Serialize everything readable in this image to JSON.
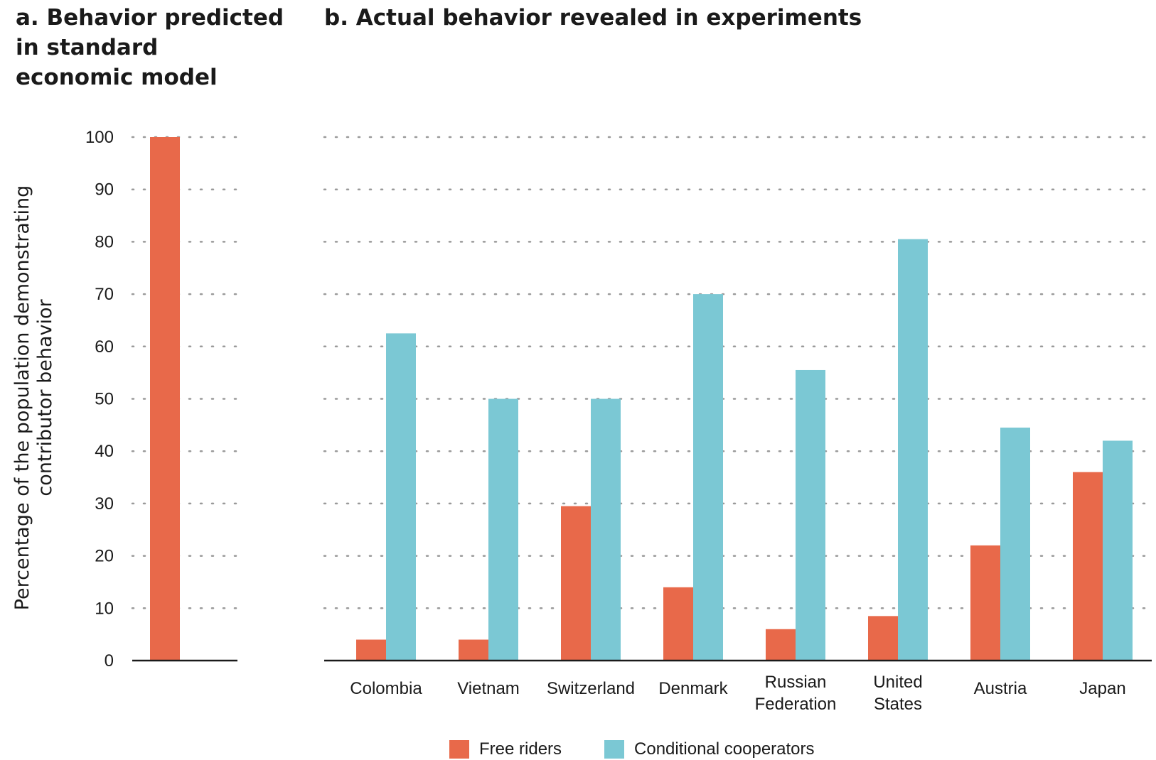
{
  "titles": {
    "panel_a": [
      "a. Behavior predicted",
      "in standard",
      "economic model"
    ],
    "panel_b": "b. Actual behavior revealed in experiments"
  },
  "ylabel": [
    "Percentage of the population demonstrating",
    "contributor behavior"
  ],
  "legend": {
    "free_riders": "Free riders",
    "conditional_cooperators": "Conditional cooperators"
  },
  "colors": {
    "free_riders": "#e8694a",
    "conditional_cooperators": "#7bc8d4",
    "grid": "#9a9a9a",
    "axis": "#1a1a1a"
  },
  "chart_data": [
    {
      "type": "bar",
      "panel": "a",
      "categories": [
        ""
      ],
      "series": [
        {
          "name": "Free riders",
          "values": [
            100
          ]
        }
      ],
      "ylim": [
        0,
        100
      ],
      "yticks": [
        0,
        10,
        20,
        30,
        40,
        50,
        60,
        70,
        80,
        90,
        100
      ],
      "grid": true
    },
    {
      "type": "bar",
      "panel": "b",
      "categories": [
        [
          "Colombia"
        ],
        [
          "Vietnam"
        ],
        [
          "Switzerland"
        ],
        [
          "Denmark"
        ],
        [
          "Russian",
          "Federation"
        ],
        [
          "United",
          "States"
        ],
        [
          "Austria"
        ],
        [
          "Japan"
        ]
      ],
      "series": [
        {
          "name": "Free riders",
          "values": [
            4,
            4,
            29.5,
            14,
            6,
            8.5,
            22,
            36
          ]
        },
        {
          "name": "Conditional cooperators",
          "values": [
            62.5,
            50,
            50,
            70,
            55.5,
            80.5,
            44.5,
            42
          ]
        }
      ],
      "ylim": [
        0,
        100
      ],
      "grid": true,
      "legend_position": "bottom"
    }
  ]
}
